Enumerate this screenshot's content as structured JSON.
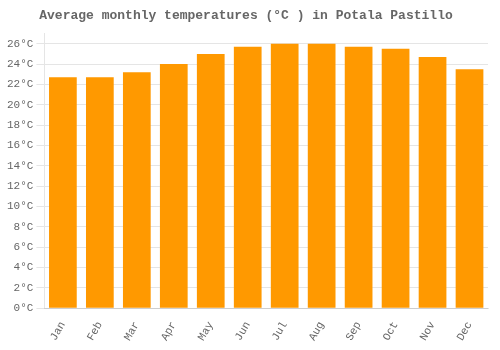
{
  "chart_data": {
    "type": "bar",
    "title": "Average monthly temperatures (°C ) in Potala Pastillo",
    "categories": [
      "Jan",
      "Feb",
      "Mar",
      "Apr",
      "May",
      "Jun",
      "Jul",
      "Aug",
      "Sep",
      "Oct",
      "Nov",
      "Dec"
    ],
    "values": [
      22.7,
      22.7,
      23.2,
      24.0,
      25.0,
      25.7,
      26.0,
      26.0,
      25.7,
      25.5,
      24.7,
      23.5
    ],
    "color": "#FF9900",
    "ylim": [
      0,
      27
    ],
    "yticks": [
      {
        "value": 0,
        "label": "0°C"
      },
      {
        "value": 2,
        "label": "2°C"
      },
      {
        "value": 4,
        "label": "4°C"
      },
      {
        "value": 6,
        "label": "6°C"
      },
      {
        "value": 8,
        "label": "8°C"
      },
      {
        "value": 10,
        "label": "10°C"
      },
      {
        "value": 12,
        "label": "12°C"
      },
      {
        "value": 14,
        "label": "14°C"
      },
      {
        "value": 16,
        "label": "16°C"
      },
      {
        "value": 18,
        "label": "18°C"
      },
      {
        "value": 20,
        "label": "20°C"
      },
      {
        "value": 22,
        "label": "22°C"
      },
      {
        "value": 24,
        "label": "24°C"
      },
      {
        "value": 26,
        "label": "26°C"
      }
    ],
    "grid": true
  }
}
